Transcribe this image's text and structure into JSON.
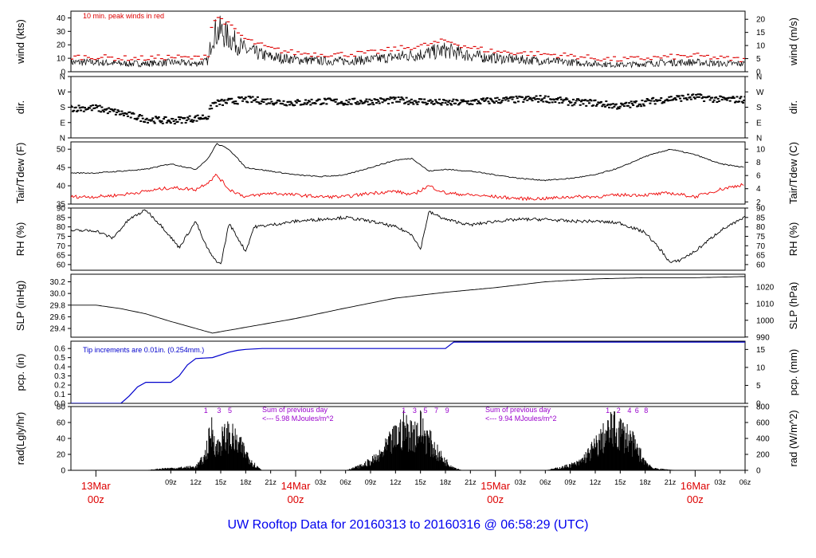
{
  "footer_title": "UW Rooftop Data for 20160313  to  20160316 @ 06:58:29  (UTC)",
  "colors": {
    "frame": "#000000",
    "data": "#000000",
    "peak": "#dd0000",
    "dew": "#ee0000",
    "precip": "#0000cc",
    "annotation_rad": "#9900cc",
    "date_label": "#dd0000",
    "title": "#0000ee"
  },
  "chart_data": [
    {
      "type": "line",
      "ylabel": "wind (kts)",
      "ylabel_right": "wind (m/s)",
      "ylim": [
        0,
        45
      ],
      "yticks": [
        "0",
        "10",
        "20",
        "30",
        "40"
      ],
      "yticks_right": [
        "0",
        "5",
        "10",
        "15",
        "20"
      ],
      "annotation": "10 min. peak winds in red",
      "series": [
        {
          "x": [
            0,
            3,
            6,
            9,
            12,
            13.5,
            14,
            15,
            18,
            21,
            24,
            27,
            30,
            33,
            36,
            39,
            42,
            45,
            48,
            51,
            54,
            57,
            60,
            63,
            66,
            69,
            72,
            75,
            78
          ],
          "y": [
            7,
            6,
            6,
            7,
            6,
            8,
            28,
            30,
            16,
            11,
            9,
            8,
            8,
            9,
            11,
            13,
            16,
            12,
            10,
            9,
            8,
            7,
            6,
            5,
            6,
            7,
            7,
            6,
            6
          ]
        },
        {
          "name": "10 min. peak winds",
          "x": [
            0,
            3,
            6,
            9,
            12,
            13.5,
            14,
            15,
            18,
            21,
            24,
            27,
            30,
            33,
            36,
            39,
            42,
            45,
            48,
            51,
            54,
            57,
            60,
            63,
            66,
            69,
            72,
            75,
            78
          ],
          "y": [
            11,
            10,
            10,
            11,
            10,
            13,
            38,
            40,
            24,
            17,
            14,
            13,
            13,
            14,
            17,
            19,
            23,
            18,
            15,
            14,
            13,
            12,
            10,
            9,
            10,
            11,
            12,
            10,
            9
          ]
        }
      ]
    },
    {
      "type": "scatter",
      "ylabel": "dir.",
      "ylabel_right": "dir.",
      "ylim": [
        0,
        360
      ],
      "yticks": [
        "N",
        "E",
        "S",
        "W",
        "N"
      ],
      "yticks_right": [
        "N",
        "E",
        "S",
        "W",
        "N"
      ],
      "series": [
        {
          "x": [
            0,
            3,
            6,
            9,
            12,
            13.5,
            14,
            18,
            21,
            24,
            27,
            30,
            33,
            36,
            39,
            42,
            45,
            48,
            51,
            54,
            57,
            60,
            63,
            66,
            69,
            72,
            75,
            78
          ],
          "y": [
            175,
            145,
            110,
            100,
            115,
            125,
            200,
            225,
            215,
            205,
            215,
            210,
            215,
            220,
            215,
            205,
            210,
            220,
            225,
            230,
            210,
            205,
            185,
            210,
            230,
            240,
            225,
            225
          ]
        }
      ]
    },
    {
      "type": "line",
      "ylabel": "Tair/Tdew (F)",
      "ylabel_right": "Tair/Tdew (C)",
      "ylim": [
        35,
        52
      ],
      "yticks": [
        "35",
        "40",
        "45",
        "50"
      ],
      "yticks_right": [
        "2",
        "4",
        "6",
        "8",
        "10"
      ],
      "series": [
        {
          "x": [
            0,
            3,
            6,
            9,
            12,
            13.5,
            14.5,
            16,
            18,
            21,
            24,
            27,
            30,
            33,
            36,
            38,
            40,
            42,
            45,
            48,
            51,
            54,
            57,
            60,
            63,
            66,
            69,
            72,
            75,
            78
          ],
          "y": [
            43.5,
            44,
            44.5,
            46,
            44.5,
            47.5,
            51.5,
            50,
            45,
            44,
            43,
            42.5,
            43,
            45,
            47,
            47.5,
            44,
            44.5,
            44,
            43,
            42,
            41.5,
            42,
            43,
            45,
            48,
            50,
            48.5,
            46,
            45
          ]
        },
        {
          "name": "Tdew",
          "x": [
            0,
            3,
            6,
            9,
            12,
            13.5,
            14.5,
            16,
            18,
            21,
            24,
            27,
            30,
            33,
            36,
            38,
            40,
            42,
            45,
            48,
            51,
            54,
            57,
            60,
            63,
            66,
            69,
            72,
            75,
            78
          ],
          "y": [
            37,
            37.5,
            38.5,
            39.5,
            39,
            41,
            43,
            39,
            37,
            38,
            37.5,
            37,
            37,
            38,
            38.5,
            37.5,
            40,
            38,
            37.5,
            37,
            36.5,
            36.5,
            37,
            37,
            37.5,
            37.5,
            38,
            37,
            39,
            40.5
          ]
        }
      ]
    },
    {
      "type": "line",
      "ylabel": "RH (%)",
      "ylabel_right": "RH (%)",
      "ylim": [
        57,
        90
      ],
      "yticks": [
        "60",
        "65",
        "70",
        "75",
        "80",
        "85",
        "90"
      ],
      "yticks_right": [
        "60",
        "65",
        "70",
        "75",
        "80",
        "85",
        "90"
      ],
      "series": [
        {
          "x": [
            0,
            2,
            4,
            6,
            8,
            10,
            12,
            13,
            14,
            15,
            16,
            18,
            19,
            21,
            24,
            27,
            30,
            33,
            36,
            38,
            39,
            40,
            42,
            45,
            48,
            51,
            54,
            57,
            60,
            63,
            66,
            68,
            69,
            70,
            72,
            75,
            78
          ],
          "y": [
            78,
            74,
            84,
            89,
            80,
            69,
            83,
            72,
            64,
            60,
            82,
            67,
            80,
            81,
            83,
            84,
            85,
            83,
            80,
            76,
            68,
            88,
            84,
            81,
            83,
            84,
            84,
            83,
            83,
            82,
            77,
            67,
            61,
            62,
            67,
            78,
            85
          ]
        }
      ]
    },
    {
      "type": "line",
      "ylabel": "SLP (inHg)",
      "ylabel_right": "SLP (hPa)",
      "ylim": [
        29.25,
        30.33
      ],
      "yticks": [
        "29.4",
        "29.6",
        "29.8",
        "30.0",
        "30.2"
      ],
      "yticks_right": [
        "990",
        "1000",
        "1010",
        "1020"
      ],
      "series": [
        {
          "x": [
            0,
            3,
            6,
            9,
            12,
            14,
            18,
            24,
            30,
            36,
            42,
            48,
            54,
            60,
            66,
            72,
            78
          ],
          "y": [
            29.8,
            29.74,
            29.65,
            29.52,
            29.4,
            29.32,
            29.42,
            29.57,
            29.75,
            29.92,
            30.02,
            30.1,
            30.2,
            30.25,
            30.27,
            30.27,
            30.29
          ]
        }
      ]
    },
    {
      "type": "line",
      "ylabel": "pcp. (in)",
      "ylabel_right": "pcp. (mm)",
      "ylim": [
        0,
        0.68
      ],
      "yticks": [
        "0.0",
        "0.1",
        "0.2",
        "0.3",
        "0.4",
        "0.5",
        "0.6"
      ],
      "yticks_right": [
        "0",
        "5",
        "10",
        "15"
      ],
      "annotation": "Tip increments are 0.01in. (0.254mm.)",
      "series": [
        {
          "x": [
            0,
            3,
            4,
            5,
            6,
            7,
            9,
            10,
            11,
            12,
            14,
            16,
            17,
            18,
            20,
            42,
            43,
            78
          ],
          "y": [
            0,
            0,
            0.08,
            0.18,
            0.23,
            0.23,
            0.23,
            0.3,
            0.42,
            0.49,
            0.5,
            0.56,
            0.58,
            0.59,
            0.6,
            0.6,
            0.67,
            0.67
          ]
        }
      ]
    },
    {
      "type": "area",
      "ylabel": "rad(Lgly/hr)",
      "ylabel_right": "rad (W/m^2)",
      "ylim": [
        0,
        80
      ],
      "yticks": [
        "0",
        "20",
        "40",
        "60",
        "80"
      ],
      "yticks_right": [
        "0",
        "200",
        "400",
        "600",
        "800"
      ],
      "annotations": [
        "Sum of previous day",
        "<--- 5.98 MJoules/m^2",
        "Sum of previous day",
        "<--- 9.94 MJoules/m^2"
      ],
      "hour_marks": [
        "1",
        "3",
        "5",
        "1",
        "3",
        "5",
        "7",
        "9",
        "1",
        "2",
        "4",
        "6",
        "8"
      ],
      "series": [
        {
          "x": [
            6,
            8,
            10,
            12,
            13,
            13.5,
            14,
            14.5,
            15,
            16,
            17,
            18,
            19,
            20,
            22,
            30,
            32,
            34,
            35,
            36,
            37,
            38,
            39,
            40,
            41,
            42,
            43,
            44,
            45,
            54,
            56,
            58,
            59,
            60,
            61,
            62,
            63,
            64,
            65,
            66,
            67,
            70
          ],
          "y": [
            0,
            3,
            4,
            6,
            20,
            45,
            70,
            35,
            50,
            60,
            45,
            30,
            10,
            0,
            0,
            0,
            8,
            22,
            40,
            55,
            70,
            60,
            72,
            50,
            30,
            15,
            5,
            0,
            0,
            0,
            5,
            12,
            25,
            40,
            55,
            70,
            65,
            55,
            35,
            15,
            3,
            0
          ]
        }
      ]
    }
  ],
  "x_axis": {
    "hour_ticks": [
      "09z",
      "12z",
      "15z",
      "18z",
      "21z",
      "03z",
      "06z",
      "09z",
      "12z",
      "15z",
      "18z",
      "21z",
      "03z",
      "06z",
      "09z",
      "12z",
      "15z",
      "18z",
      "21z",
      "03z",
      "06z"
    ],
    "day_labels": [
      {
        "date": "13Mar",
        "time": "00z"
      },
      {
        "date": "14Mar",
        "time": "00z"
      },
      {
        "date": "15Mar",
        "time": "00z"
      },
      {
        "date": "16Mar",
        "time": "00z"
      }
    ]
  }
}
